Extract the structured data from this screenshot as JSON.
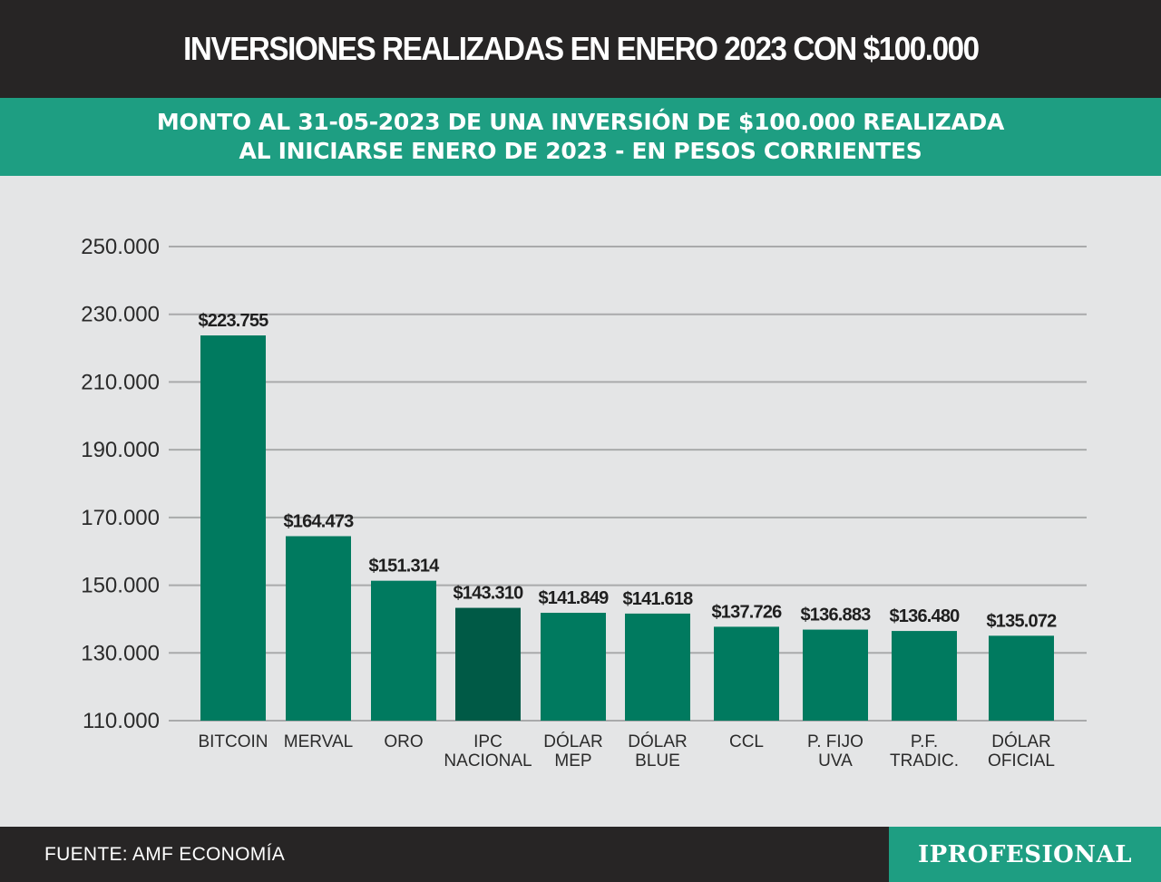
{
  "header": {
    "title": "INVERSIONES REALIZADAS EN ENERO 2023 CON $100.000",
    "subtitle_lines": [
      "MONTO AL 31-05-2023 DE UNA INVERSIÓN DE $100.000 REALIZADA",
      "AL INICIARSE ENERO DE 2023 - EN PESOS CORRIENTES"
    ]
  },
  "footer": {
    "source": "FUENTE: AMF ECONOMÍA",
    "brand": "IPROFESIONAL"
  },
  "colors": {
    "bar": "#007a5f",
    "bar_highlight": "#005a46",
    "grid": "#a9aaab",
    "title_bg": "#272525",
    "accent": "#1e9e82"
  },
  "chart_data": {
    "type": "bar",
    "categories": [
      [
        "BITCOIN"
      ],
      [
        "MERVAL"
      ],
      [
        "ORO"
      ],
      [
        "IPC",
        "NACIONAL"
      ],
      [
        "DÓLAR",
        "MEP"
      ],
      [
        "DÓLAR",
        "BLUE"
      ],
      [
        "CCL"
      ],
      [
        "P. FIJO",
        "UVA"
      ],
      [
        "P.F.",
        "TRADIC."
      ],
      [
        "DÓLAR",
        "OFICIAL"
      ]
    ],
    "values": [
      223755,
      164473,
      151314,
      143310,
      141849,
      141618,
      137726,
      136883,
      136480,
      135072
    ],
    "data_labels": [
      "$223.755",
      "$164.473",
      "$151.314",
      "$143.310",
      "$141.849",
      "$141.618",
      "$137.726",
      "$136.883",
      "$136.480",
      "$135.072"
    ],
    "highlight_index": 3,
    "ylim": [
      110000,
      250000
    ],
    "yticks": [
      110000,
      130000,
      150000,
      170000,
      190000,
      210000,
      230000,
      250000
    ],
    "ytick_labels": [
      "110.000",
      "130.000",
      "150.000",
      "170.000",
      "190.000",
      "210.000",
      "230.000",
      "250.000"
    ],
    "grid": true,
    "xlabel": "",
    "ylabel": ""
  }
}
